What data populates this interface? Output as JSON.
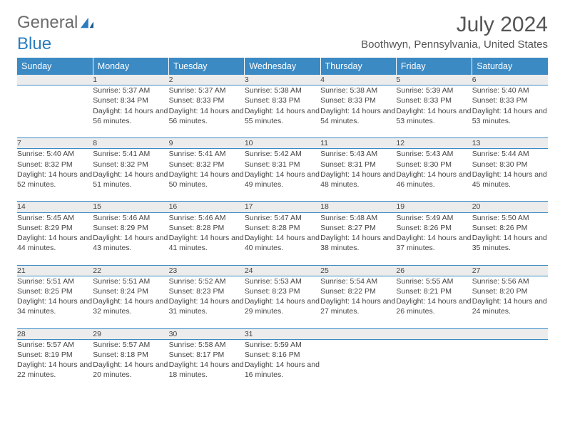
{
  "logo": {
    "part1": "General",
    "part2": "Blue"
  },
  "title": "July 2024",
  "location": "Boothwyn, Pennsylvania, United States",
  "colors": {
    "header_bg": "#3b8ac4",
    "header_text": "#ffffff",
    "daynum_bg": "#ececec",
    "rule": "#3b8ac4",
    "body_text": "#444444",
    "logo_gray": "#6b6b6b",
    "logo_blue": "#2a7dbf"
  },
  "dayNames": [
    "Sunday",
    "Monday",
    "Tuesday",
    "Wednesday",
    "Thursday",
    "Friday",
    "Saturday"
  ],
  "weeks": [
    [
      null,
      {
        "n": "1",
        "sr": "5:37 AM",
        "ss": "8:34 PM",
        "dl": "14 hours and 56 minutes."
      },
      {
        "n": "2",
        "sr": "5:37 AM",
        "ss": "8:33 PM",
        "dl": "14 hours and 56 minutes."
      },
      {
        "n": "3",
        "sr": "5:38 AM",
        "ss": "8:33 PM",
        "dl": "14 hours and 55 minutes."
      },
      {
        "n": "4",
        "sr": "5:38 AM",
        "ss": "8:33 PM",
        "dl": "14 hours and 54 minutes."
      },
      {
        "n": "5",
        "sr": "5:39 AM",
        "ss": "8:33 PM",
        "dl": "14 hours and 53 minutes."
      },
      {
        "n": "6",
        "sr": "5:40 AM",
        "ss": "8:33 PM",
        "dl": "14 hours and 53 minutes."
      }
    ],
    [
      {
        "n": "7",
        "sr": "5:40 AM",
        "ss": "8:32 PM",
        "dl": "14 hours and 52 minutes."
      },
      {
        "n": "8",
        "sr": "5:41 AM",
        "ss": "8:32 PM",
        "dl": "14 hours and 51 minutes."
      },
      {
        "n": "9",
        "sr": "5:41 AM",
        "ss": "8:32 PM",
        "dl": "14 hours and 50 minutes."
      },
      {
        "n": "10",
        "sr": "5:42 AM",
        "ss": "8:31 PM",
        "dl": "14 hours and 49 minutes."
      },
      {
        "n": "11",
        "sr": "5:43 AM",
        "ss": "8:31 PM",
        "dl": "14 hours and 48 minutes."
      },
      {
        "n": "12",
        "sr": "5:43 AM",
        "ss": "8:30 PM",
        "dl": "14 hours and 46 minutes."
      },
      {
        "n": "13",
        "sr": "5:44 AM",
        "ss": "8:30 PM",
        "dl": "14 hours and 45 minutes."
      }
    ],
    [
      {
        "n": "14",
        "sr": "5:45 AM",
        "ss": "8:29 PM",
        "dl": "14 hours and 44 minutes."
      },
      {
        "n": "15",
        "sr": "5:46 AM",
        "ss": "8:29 PM",
        "dl": "14 hours and 43 minutes."
      },
      {
        "n": "16",
        "sr": "5:46 AM",
        "ss": "8:28 PM",
        "dl": "14 hours and 41 minutes."
      },
      {
        "n": "17",
        "sr": "5:47 AM",
        "ss": "8:28 PM",
        "dl": "14 hours and 40 minutes."
      },
      {
        "n": "18",
        "sr": "5:48 AM",
        "ss": "8:27 PM",
        "dl": "14 hours and 38 minutes."
      },
      {
        "n": "19",
        "sr": "5:49 AM",
        "ss": "8:26 PM",
        "dl": "14 hours and 37 minutes."
      },
      {
        "n": "20",
        "sr": "5:50 AM",
        "ss": "8:26 PM",
        "dl": "14 hours and 35 minutes."
      }
    ],
    [
      {
        "n": "21",
        "sr": "5:51 AM",
        "ss": "8:25 PM",
        "dl": "14 hours and 34 minutes."
      },
      {
        "n": "22",
        "sr": "5:51 AM",
        "ss": "8:24 PM",
        "dl": "14 hours and 32 minutes."
      },
      {
        "n": "23",
        "sr": "5:52 AM",
        "ss": "8:23 PM",
        "dl": "14 hours and 31 minutes."
      },
      {
        "n": "24",
        "sr": "5:53 AM",
        "ss": "8:23 PM",
        "dl": "14 hours and 29 minutes."
      },
      {
        "n": "25",
        "sr": "5:54 AM",
        "ss": "8:22 PM",
        "dl": "14 hours and 27 minutes."
      },
      {
        "n": "26",
        "sr": "5:55 AM",
        "ss": "8:21 PM",
        "dl": "14 hours and 26 minutes."
      },
      {
        "n": "27",
        "sr": "5:56 AM",
        "ss": "8:20 PM",
        "dl": "14 hours and 24 minutes."
      }
    ],
    [
      {
        "n": "28",
        "sr": "5:57 AM",
        "ss": "8:19 PM",
        "dl": "14 hours and 22 minutes."
      },
      {
        "n": "29",
        "sr": "5:57 AM",
        "ss": "8:18 PM",
        "dl": "14 hours and 20 minutes."
      },
      {
        "n": "30",
        "sr": "5:58 AM",
        "ss": "8:17 PM",
        "dl": "14 hours and 18 minutes."
      },
      {
        "n": "31",
        "sr": "5:59 AM",
        "ss": "8:16 PM",
        "dl": "14 hours and 16 minutes."
      },
      null,
      null,
      null
    ]
  ],
  "labels": {
    "sunrise": "Sunrise:",
    "sunset": "Sunset:",
    "daylight": "Daylight:"
  }
}
